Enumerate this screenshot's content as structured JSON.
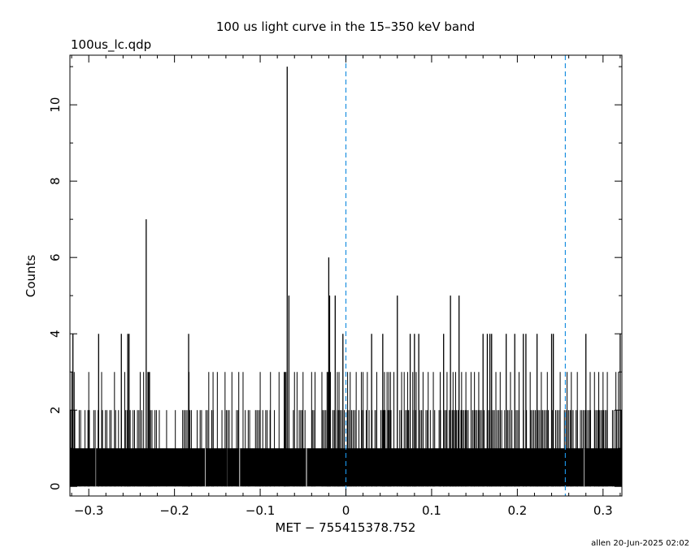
{
  "chart_data": {
    "type": "bar",
    "title": "100 us light curve in the 15–350 keV band",
    "subtitle": "100us_lc.qdp",
    "xlabel": "MET − 755415378.752",
    "ylabel": "Counts",
    "xlim": [
      -0.322,
      0.322
    ],
    "ylim": [
      -0.25,
      11.3
    ],
    "x_ticks": [
      -0.3,
      -0.2,
      -0.1,
      0,
      0.1,
      0.2,
      0.3
    ],
    "x_tick_labels": [
      "−0.3",
      "−0.2",
      "−0.1",
      "0",
      "0.1",
      "0.2",
      "0.3"
    ],
    "y_ticks": [
      0,
      2,
      4,
      6,
      8,
      10
    ],
    "y_tick_labels": [
      "0",
      "2",
      "4",
      "6",
      "8",
      "10"
    ],
    "bin_width": 0.0001,
    "baseline_counts": 1,
    "markers": [
      {
        "x": 0.0,
        "style": "dashed",
        "color": "#1a8fe0"
      },
      {
        "x": 0.256,
        "style": "dashed",
        "color": "#1a8fe0"
      }
    ],
    "zero_bins": [
      -0.292,
      -0.164,
      -0.138,
      -0.124,
      -0.046,
      0.278
    ],
    "peaks": [
      {
        "x": -0.0685,
        "y": 11
      },
      {
        "x": -0.0665,
        "y": 5
      },
      {
        "x": -0.233,
        "y": 7
      },
      {
        "x": -0.02,
        "y": 6
      },
      {
        "x": -0.019,
        "y": 5
      },
      {
        "x": -0.0125,
        "y": 5
      },
      {
        "x": 0.06,
        "y": 5
      },
      {
        "x": 0.122,
        "y": 5
      },
      {
        "x": 0.132,
        "y": 5
      },
      {
        "x": -0.3185,
        "y": 4
      },
      {
        "x": -0.2885,
        "y": 4
      },
      {
        "x": -0.262,
        "y": 4
      },
      {
        "x": -0.2545,
        "y": 4
      },
      {
        "x": -0.253,
        "y": 4
      },
      {
        "x": -0.1835,
        "y": 4
      },
      {
        "x": -0.0035,
        "y": 4
      },
      {
        "x": 0.03,
        "y": 4
      },
      {
        "x": 0.043,
        "y": 4
      },
      {
        "x": 0.075,
        "y": 4
      },
      {
        "x": 0.08,
        "y": 4
      },
      {
        "x": 0.085,
        "y": 4
      },
      {
        "x": 0.114,
        "y": 4
      },
      {
        "x": 0.16,
        "y": 4
      },
      {
        "x": 0.165,
        "y": 4
      },
      {
        "x": 0.168,
        "y": 4
      },
      {
        "x": 0.17,
        "y": 4
      },
      {
        "x": 0.187,
        "y": 4
      },
      {
        "x": 0.197,
        "y": 4
      },
      {
        "x": 0.207,
        "y": 4
      },
      {
        "x": 0.21,
        "y": 4
      },
      {
        "x": 0.223,
        "y": 4
      },
      {
        "x": 0.24,
        "y": 4
      },
      {
        "x": 0.242,
        "y": 4
      },
      {
        "x": 0.28,
        "y": 4
      },
      {
        "x": 0.32,
        "y": 4
      }
    ],
    "level3_bins": [
      -0.32,
      -0.317,
      -0.3,
      -0.285,
      -0.27,
      -0.258,
      -0.24,
      -0.236,
      -0.231,
      -0.23,
      -0.229,
      -0.183,
      -0.16,
      -0.155,
      -0.15,
      -0.141,
      -0.133,
      -0.125,
      -0.12,
      -0.1,
      -0.088,
      -0.078,
      -0.072,
      -0.071,
      -0.07,
      -0.06,
      -0.057,
      -0.05,
      -0.04,
      -0.036,
      -0.028,
      -0.022,
      -0.021,
      -0.018,
      -0.01,
      -0.008,
      0.002,
      0.005,
      0.012,
      0.018,
      0.02,
      0.025,
      0.036,
      0.045,
      0.048,
      0.05,
      0.052,
      0.056,
      0.065,
      0.068,
      0.072,
      0.078,
      0.082,
      0.09,
      0.096,
      0.102,
      0.11,
      0.118,
      0.125,
      0.128,
      0.135,
      0.14,
      0.146,
      0.15,
      0.155,
      0.175,
      0.18,
      0.192,
      0.202,
      0.215,
      0.228,
      0.235,
      0.25,
      0.258,
      0.263,
      0.27,
      0.285,
      0.29,
      0.295,
      0.3,
      0.305,
      0.315,
      0.318
    ]
  },
  "footer": {
    "stamp": "allen 20-Jun-2025 02:02"
  }
}
